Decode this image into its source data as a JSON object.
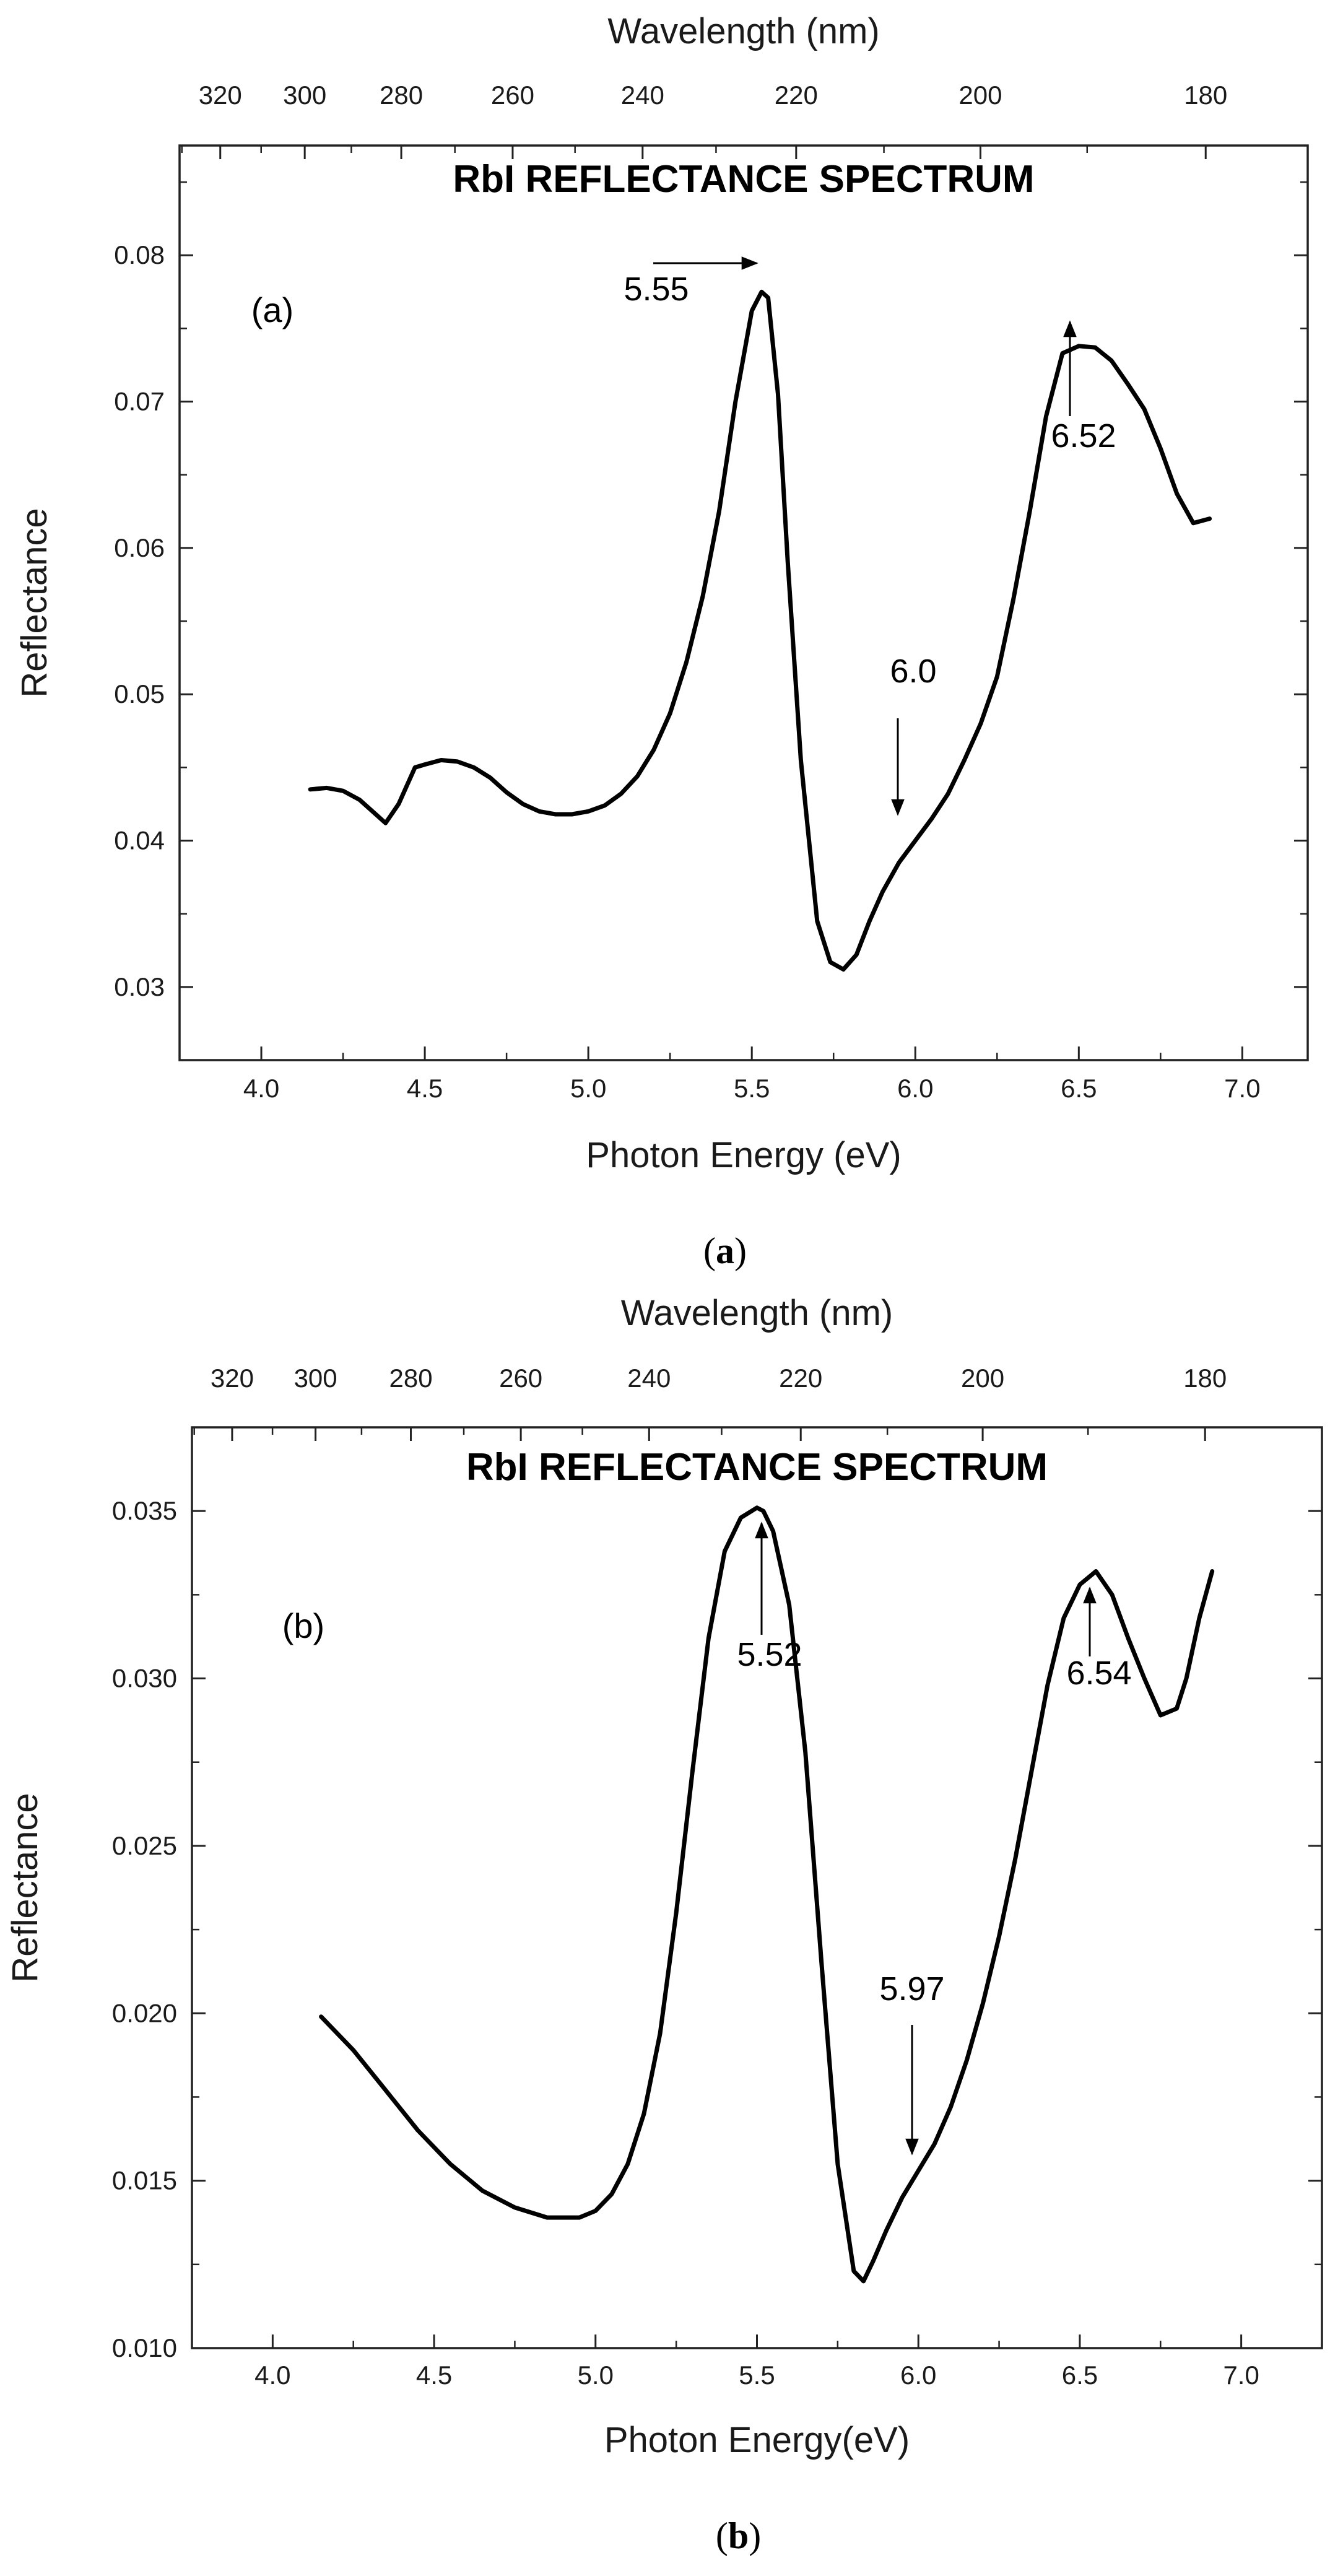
{
  "chart_data": [
    {
      "type": "line",
      "panel_label": "(a)",
      "caption_letter": "a",
      "title": "RbI REFLECTANCE SPECTRUM",
      "xlabel": "Photon Energy (eV)",
      "ylabel": "Reflectance",
      "top_axis_label": "Wavelength (nm)",
      "xlim": [
        3.75,
        7.2
      ],
      "ylim": [
        0.025,
        0.0875
      ],
      "x_ticks": [
        4.0,
        4.5,
        5.0,
        5.5,
        6.0,
        6.5,
        7.0
      ],
      "x_tick_labels": [
        "4.0",
        "4.5",
        "5.0",
        "5.5",
        "6.0",
        "6.5",
        "7.0"
      ],
      "y_ticks": [
        0.03,
        0.04,
        0.05,
        0.06,
        0.07,
        0.08
      ],
      "y_tick_labels": [
        "0.03",
        "0.04",
        "0.05",
        "0.06",
        "0.07",
        "0.08"
      ],
      "top_ticks_nm": [
        320,
        300,
        280,
        260,
        240,
        220,
        200,
        180
      ],
      "top_tick_labels": [
        "320",
        "300",
        "280",
        "260",
        "240",
        "220",
        "200",
        "180"
      ],
      "series": [
        {
          "x": [
            4.15,
            4.2,
            4.25,
            4.3,
            4.35,
            4.38,
            4.42,
            4.47,
            4.5,
            4.55,
            4.6,
            4.65,
            4.7,
            4.75,
            4.8,
            4.85,
            4.9,
            4.95,
            5.0,
            5.05,
            5.1,
            5.15,
            5.2,
            5.25,
            5.3,
            5.35,
            5.4,
            5.45,
            5.5,
            5.53,
            5.55,
            5.58,
            5.61,
            5.65,
            5.7,
            5.74,
            5.78,
            5.82,
            5.86,
            5.9,
            5.95,
            6.0,
            6.05,
            6.1,
            6.15,
            6.2,
            6.25,
            6.3,
            6.35,
            6.4,
            6.45,
            6.5,
            6.55,
            6.6,
            6.65,
            6.7,
            6.75,
            6.8,
            6.85,
            6.9
          ],
          "y": [
            0.0435,
            0.0436,
            0.0434,
            0.0428,
            0.0418,
            0.0412,
            0.0425,
            0.045,
            0.0452,
            0.0455,
            0.0454,
            0.045,
            0.0443,
            0.0433,
            0.0425,
            0.042,
            0.0418,
            0.0418,
            0.042,
            0.0424,
            0.0432,
            0.0444,
            0.0462,
            0.0487,
            0.0522,
            0.0567,
            0.0625,
            0.07,
            0.0762,
            0.0775,
            0.0771,
            0.0705,
            0.059,
            0.0455,
            0.0345,
            0.0317,
            0.0312,
            0.0322,
            0.0345,
            0.0365,
            0.0385,
            0.04,
            0.0415,
            0.0432,
            0.0455,
            0.048,
            0.0512,
            0.0565,
            0.0625,
            0.069,
            0.0733,
            0.0738,
            0.0737,
            0.0728,
            0.0712,
            0.0695,
            0.0668,
            0.0637,
            0.0617,
            0.062
          ]
        }
      ],
      "annotations": [
        {
          "text": "5.55",
          "x": 5.55,
          "y": 0.0771,
          "arrow": "right"
        },
        {
          "text": "6.0",
          "x": 6.0,
          "y": 0.0405,
          "arrow": "down"
        },
        {
          "text": "6.52",
          "x": 6.52,
          "y": 0.0735,
          "arrow": "up"
        }
      ]
    },
    {
      "type": "line",
      "panel_label": "(b)",
      "caption_letter": "b",
      "title": "RbI REFLECTANCE SPECTRUM",
      "xlabel": "Photon Energy(eV)",
      "ylabel": "Reflectance",
      "top_axis_label": "Wavelength (nm)",
      "xlim": [
        3.75,
        7.25
      ],
      "ylim": [
        0.01,
        0.0375
      ],
      "x_ticks": [
        4.0,
        4.5,
        5.0,
        5.5,
        6.0,
        6.5,
        7.0
      ],
      "x_tick_labels": [
        "4.0",
        "4.5",
        "5.0",
        "5.5",
        "6.0",
        "6.5",
        "7.0"
      ],
      "y_ticks": [
        0.01,
        0.015,
        0.02,
        0.025,
        0.03,
        0.035
      ],
      "y_tick_labels": [
        "0.010",
        "0.015",
        "0.020",
        "0.025",
        "0.030",
        "0.035"
      ],
      "top_ticks_nm": [
        320,
        300,
        280,
        260,
        240,
        220,
        200,
        180
      ],
      "top_tick_labels": [
        "320",
        "300",
        "280",
        "260",
        "240",
        "220",
        "200",
        "180"
      ],
      "series": [
        {
          "x": [
            4.15,
            4.25,
            4.35,
            4.45,
            4.55,
            4.65,
            4.75,
            4.85,
            4.95,
            5.0,
            5.05,
            5.1,
            5.15,
            5.2,
            5.25,
            5.3,
            5.35,
            5.4,
            5.45,
            5.5,
            5.52,
            5.55,
            5.6,
            5.65,
            5.7,
            5.75,
            5.8,
            5.83,
            5.86,
            5.9,
            5.95,
            6.0,
            6.05,
            6.1,
            6.15,
            6.2,
            6.25,
            6.3,
            6.35,
            6.4,
            6.45,
            6.5,
            6.55,
            6.6,
            6.65,
            6.7,
            6.75,
            6.8,
            6.83,
            6.87,
            6.91
          ],
          "y": [
            0.0199,
            0.0189,
            0.0177,
            0.0165,
            0.0155,
            0.0147,
            0.0142,
            0.0139,
            0.0139,
            0.0141,
            0.0146,
            0.0155,
            0.017,
            0.0194,
            0.023,
            0.0272,
            0.0312,
            0.0338,
            0.0348,
            0.0351,
            0.035,
            0.0344,
            0.0322,
            0.0278,
            0.0215,
            0.0155,
            0.0123,
            0.012,
            0.0126,
            0.0135,
            0.0145,
            0.0153,
            0.0161,
            0.0172,
            0.0186,
            0.0203,
            0.0223,
            0.0246,
            0.0272,
            0.0298,
            0.0318,
            0.0328,
            0.0332,
            0.0325,
            0.0312,
            0.03,
            0.0289,
            0.0291,
            0.03,
            0.0318,
            0.0332
          ]
        }
      ],
      "annotations": [
        {
          "text": "5.52",
          "x": 5.52,
          "y": 0.0347,
          "arrow": "up"
        },
        {
          "text": "5.97",
          "x": 5.97,
          "y": 0.0158,
          "arrow": "down"
        },
        {
          "text": "6.54",
          "x": 6.54,
          "y": 0.033,
          "arrow": "up"
        }
      ]
    }
  ]
}
